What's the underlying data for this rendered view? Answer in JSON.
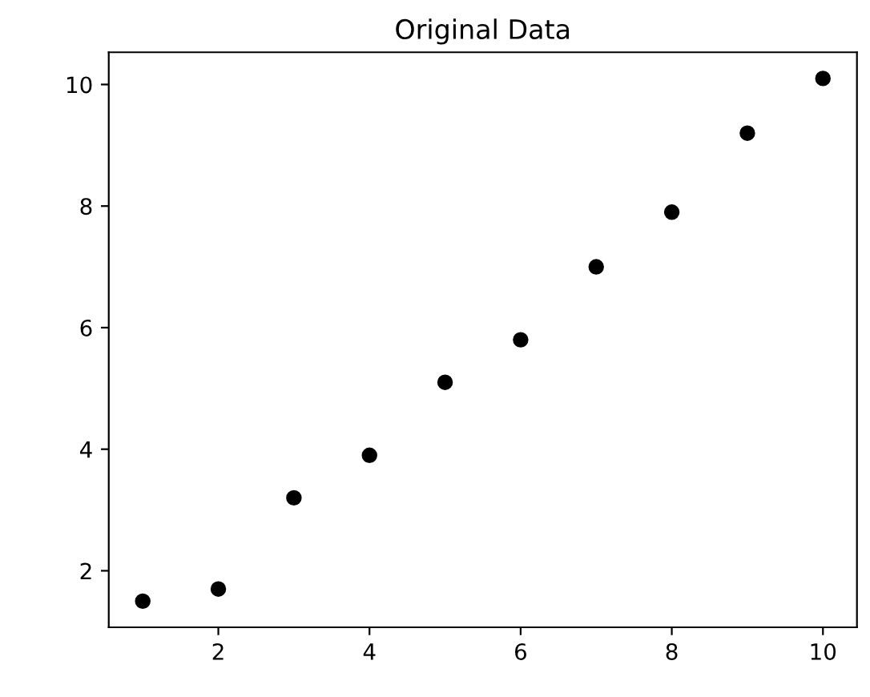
{
  "chart_data": {
    "type": "scatter",
    "title": "Original Data",
    "x": [
      1,
      2,
      3,
      4,
      5,
      6,
      7,
      8,
      9,
      10
    ],
    "series": [
      {
        "color": "#000000",
        "values": [
          1.5,
          1.7,
          3.2,
          3.9,
          5.1,
          5.8,
          7.0,
          7.9,
          9.2,
          10.1
        ]
      }
    ],
    "xlim": [
      0.55,
      10.45
    ],
    "ylim": [
      1.07,
      10.53
    ],
    "xticks": [
      2,
      4,
      6,
      8,
      10
    ],
    "yticks": [
      2,
      4,
      6,
      8,
      10
    ],
    "marker": "circle",
    "grid": false,
    "legend": false
  }
}
